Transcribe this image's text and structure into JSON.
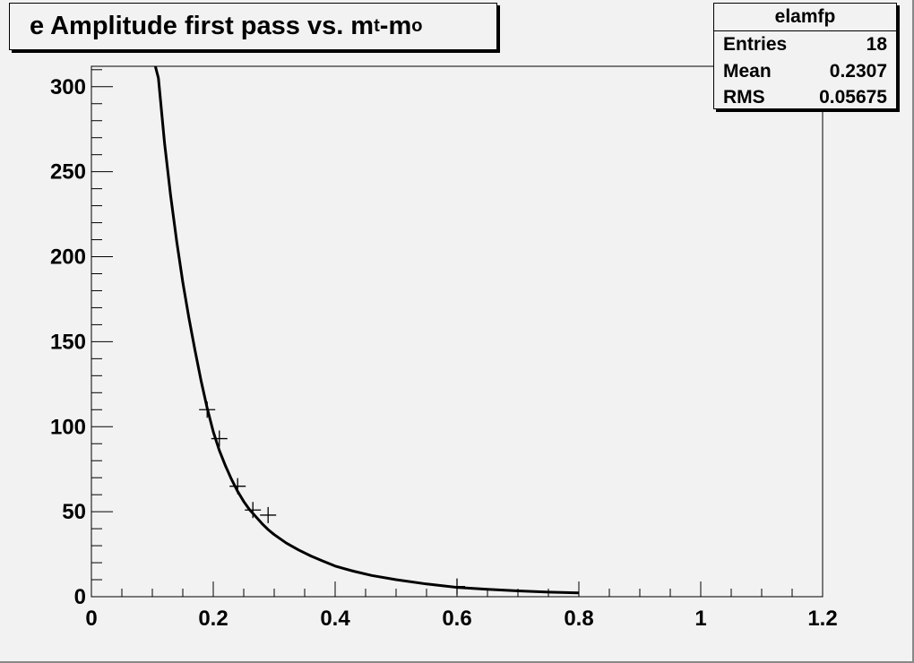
{
  "title": {
    "prefix": "e Amplitude first pass vs. m",
    "sub1": "t",
    "middle": "-m",
    "sub2": "o"
  },
  "stats": {
    "name": "elamfp",
    "rows": [
      {
        "label": "Entries",
        "value": "18"
      },
      {
        "label": "Mean",
        "value": "0.2307"
      },
      {
        "label": "RMS",
        "value": "0.05675"
      }
    ]
  },
  "chart_data": {
    "type": "scatter",
    "title": "e Amplitude first pass vs. mt-mo",
    "xlim": [
      0,
      1.2
    ],
    "ylim": [
      0,
      312
    ],
    "xticks": [
      0,
      0.2,
      0.4,
      0.6,
      0.8,
      1,
      1.2
    ],
    "xtick_labels": [
      "0",
      "0.2",
      "0.4",
      "0.6",
      "0.8",
      "1",
      "1.2"
    ],
    "yticks": [
      0,
      50,
      100,
      150,
      200,
      250,
      300
    ],
    "ytick_labels": [
      "0",
      "50",
      "100",
      "150",
      "200",
      "250",
      "300"
    ],
    "grid": false,
    "series": [
      {
        "type": "scatter",
        "marker": "cross",
        "x": [
          0.19,
          0.21,
          0.24,
          0.265,
          0.29,
          0.6
        ],
        "y": [
          110,
          93,
          65,
          51,
          48,
          6
        ]
      },
      {
        "type": "line",
        "x": [
          0.105,
          0.11,
          0.12,
          0.13,
          0.14,
          0.15,
          0.16,
          0.17,
          0.18,
          0.19,
          0.2,
          0.21,
          0.22,
          0.23,
          0.24,
          0.25,
          0.26,
          0.27,
          0.28,
          0.29,
          0.3,
          0.32,
          0.34,
          0.36,
          0.38,
          0.4,
          0.43,
          0.46,
          0.5,
          0.55,
          0.6,
          0.65,
          0.7,
          0.75,
          0.8
        ],
        "y": [
          312,
          305,
          267,
          236,
          209,
          185,
          164,
          145,
          127,
          111,
          97,
          86,
          77,
          69,
          62,
          56,
          51,
          47,
          43,
          39.5,
          36.5,
          31.5,
          27.5,
          24,
          21,
          18,
          15,
          12.5,
          10,
          7.5,
          5.5,
          4.3,
          3.4,
          2.7,
          2.2
        ]
      }
    ],
    "stats": {
      "name": "elamfp",
      "entries": 18,
      "mean": 0.2307,
      "rms": 0.05675
    }
  }
}
